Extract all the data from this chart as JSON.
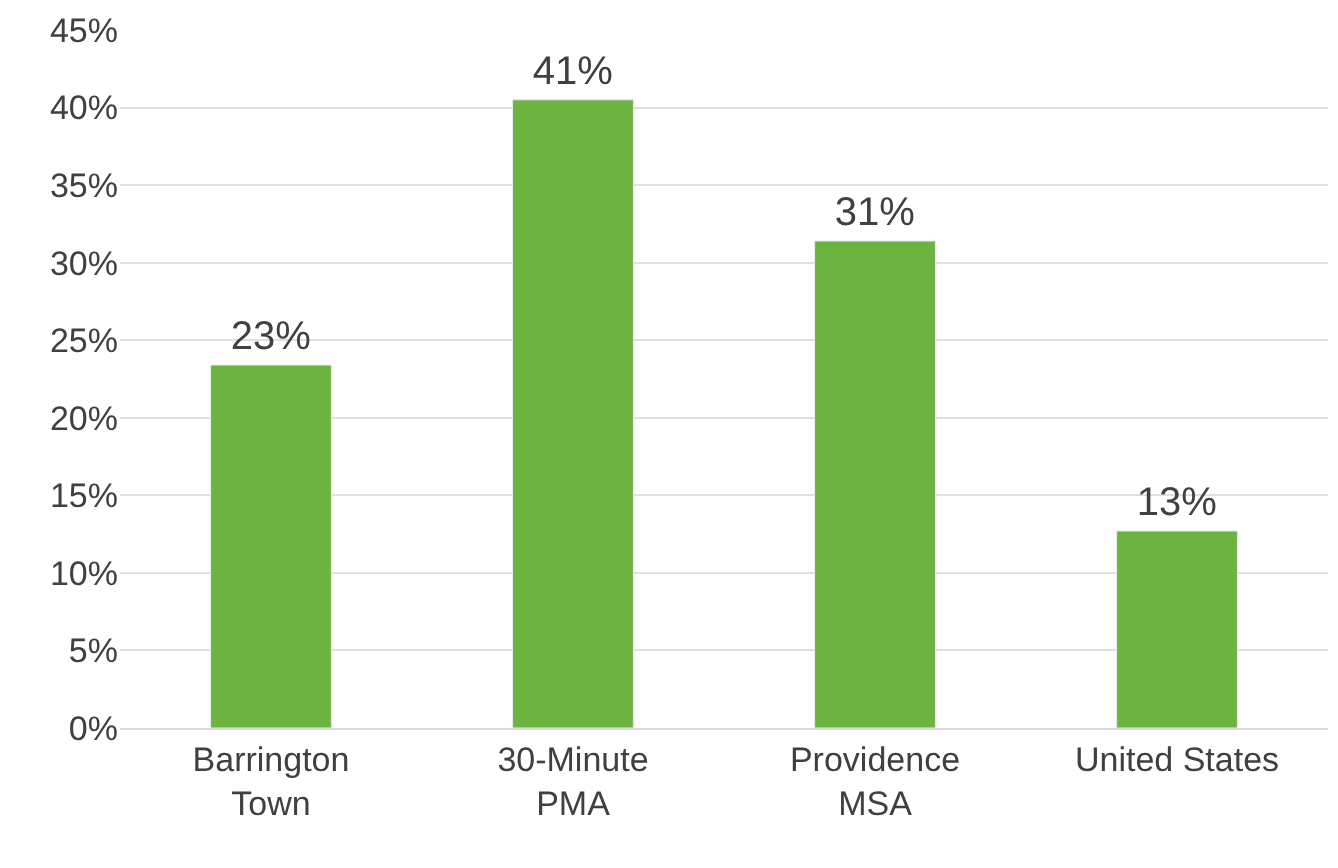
{
  "chart_data": {
    "type": "bar",
    "categories": [
      "Barrington\nTown",
      "30-Minute\nPMA",
      "Providence\nMSA",
      "United States"
    ],
    "values": [
      23.4,
      40.5,
      31.4,
      12.7
    ],
    "value_labels": [
      "23%",
      "41%",
      "31%",
      "13%"
    ],
    "color": "#6db33f",
    "ylim": [
      0,
      45
    ],
    "yticks": [
      {
        "value": 0,
        "label": "0%"
      },
      {
        "value": 5,
        "label": "5%"
      },
      {
        "value": 10,
        "label": "10%"
      },
      {
        "value": 15,
        "label": "15%"
      },
      {
        "value": 20,
        "label": "20%"
      },
      {
        "value": 25,
        "label": "25%"
      },
      {
        "value": 30,
        "label": "30%"
      },
      {
        "value": 35,
        "label": "35%"
      },
      {
        "value": 40,
        "label": "40%"
      },
      {
        "value": 45,
        "label": "45%"
      }
    ],
    "grid": "y"
  }
}
